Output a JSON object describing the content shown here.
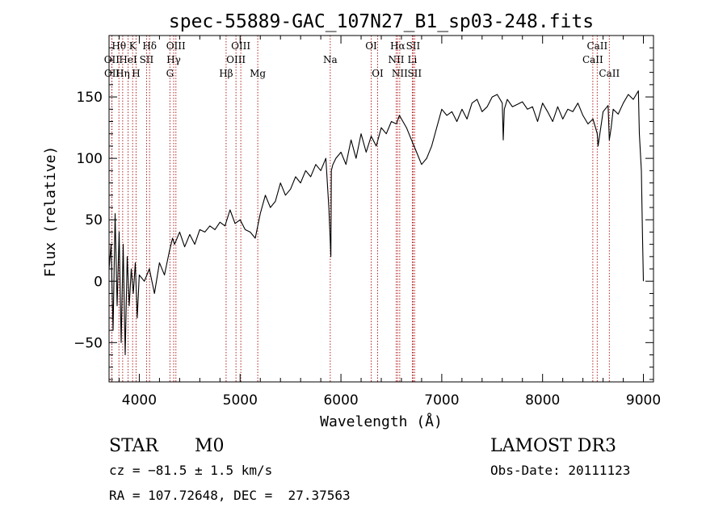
{
  "chart_data": {
    "type": "line",
    "title": "spec-55889-GAC_107N27_B1_sp03-248.fits",
    "xlabel": "Wavelength (Å)",
    "ylabel": "Flux (relative)",
    "xlim": [
      3700,
      9100
    ],
    "ylim": [
      -82,
      200
    ],
    "xticks": [
      4000,
      5000,
      6000,
      7000,
      8000,
      9000
    ],
    "yticks": [
      -50,
      0,
      50,
      100,
      150
    ],
    "grid": false,
    "series": [
      {
        "name": "flux",
        "x": [
          3700,
          3720,
          3740,
          3760,
          3780,
          3800,
          3820,
          3840,
          3860,
          3880,
          3900,
          3920,
          3940,
          3960,
          3980,
          4000,
          4050,
          4100,
          4150,
          4200,
          4250,
          4300,
          4330,
          4350,
          4400,
          4450,
          4500,
          4550,
          4600,
          4650,
          4700,
          4750,
          4800,
          4850,
          4900,
          4950,
          5000,
          5050,
          5100,
          5150,
          5200,
          5250,
          5300,
          5350,
          5400,
          5450,
          5500,
          5550,
          5600,
          5650,
          5700,
          5750,
          5800,
          5850,
          5880,
          5895,
          5900,
          5905,
          5920,
          5950,
          6000,
          6050,
          6100,
          6150,
          6200,
          6250,
          6300,
          6350,
          6400,
          6450,
          6500,
          6550,
          6580,
          6600,
          6650,
          6700,
          6750,
          6800,
          6850,
          6900,
          6950,
          7000,
          7050,
          7100,
          7150,
          7200,
          7250,
          7300,
          7350,
          7400,
          7450,
          7500,
          7550,
          7600,
          7610,
          7620,
          7650,
          7700,
          7750,
          7800,
          7850,
          7900,
          7950,
          8000,
          8050,
          8100,
          8150,
          8200,
          8250,
          8300,
          8350,
          8400,
          8450,
          8500,
          8542,
          8550,
          8600,
          8650,
          8662,
          8680,
          8700,
          8750,
          8800,
          8850,
          8900,
          8950,
          8960,
          8980,
          8990,
          9000
        ],
        "y": [
          10,
          30,
          -40,
          55,
          -20,
          40,
          -50,
          30,
          -60,
          20,
          -20,
          10,
          -10,
          15,
          -30,
          5,
          0,
          10,
          -10,
          15,
          5,
          25,
          35,
          30,
          40,
          28,
          38,
          30,
          42,
          40,
          45,
          42,
          48,
          45,
          58,
          47,
          50,
          42,
          40,
          35,
          55,
          70,
          60,
          65,
          80,
          70,
          75,
          85,
          80,
          90,
          85,
          95,
          90,
          100,
          60,
          30,
          20,
          90,
          95,
          100,
          105,
          95,
          115,
          100,
          120,
          105,
          118,
          110,
          125,
          120,
          130,
          128,
          135,
          132,
          125,
          115,
          105,
          95,
          100,
          110,
          125,
          140,
          135,
          138,
          130,
          140,
          132,
          145,
          148,
          138,
          142,
          150,
          152,
          145,
          115,
          140,
          148,
          142,
          144,
          146,
          140,
          142,
          130,
          145,
          138,
          130,
          142,
          132,
          140,
          138,
          145,
          135,
          128,
          132,
          120,
          110,
          138,
          143,
          115,
          125,
          140,
          136,
          145,
          152,
          148,
          155,
          120,
          90,
          40,
          0
        ]
      }
    ],
    "lines": [
      {
        "name": "OII",
        "x": 3727,
        "row": 1
      },
      {
        "name": "OII",
        "x": 3729,
        "row": 2
      },
      {
        "name": "Hθ",
        "x": 3798,
        "row": 0
      },
      {
        "name": "Hη",
        "x": 3835,
        "row": 2
      },
      {
        "name": "HeI",
        "x": 3889,
        "row": 1
      },
      {
        "name": "K",
        "x": 3934,
        "row": 0
      },
      {
        "name": "H",
        "x": 3968,
        "row": 2
      },
      {
        "name": "SII",
        "x": 4072,
        "row": 1
      },
      {
        "name": "Hδ",
        "x": 4102,
        "row": 0
      },
      {
        "name": "G",
        "x": 4304,
        "row": 2
      },
      {
        "name": "Hγ",
        "x": 4341,
        "row": 1
      },
      {
        "name": "OIII",
        "x": 4363,
        "row": 0
      },
      {
        "name": "Hβ",
        "x": 4861,
        "row": 2
      },
      {
        "name": "OIII",
        "x": 4959,
        "row": 1
      },
      {
        "name": "OIII",
        "x": 5007,
        "row": 0
      },
      {
        "name": "Mg",
        "x": 5175,
        "row": 2
      },
      {
        "name": "Na",
        "x": 5894,
        "row": 1
      },
      {
        "name": "OI",
        "x": 6300,
        "row": 0
      },
      {
        "name": "OI",
        "x": 6364,
        "row": 2
      },
      {
        "name": "NII",
        "x": 6548,
        "row": 1
      },
      {
        "name": "Hα",
        "x": 6563,
        "row": 0
      },
      {
        "name": "NII",
        "x": 6583,
        "row": 2
      },
      {
        "name": "Li",
        "x": 6708,
        "row": 1
      },
      {
        "name": "SII",
        "x": 6716,
        "row": 0
      },
      {
        "name": "SII",
        "x": 6731,
        "row": 2
      },
      {
        "name": "CaII",
        "x": 8498,
        "row": 1
      },
      {
        "name": "CaII",
        "x": 8542,
        "row": 0
      },
      {
        "name": "CaII",
        "x": 8662,
        "row": 2
      }
    ]
  },
  "info": {
    "class": "STAR",
    "subclass": "M0",
    "survey": "LAMOST DR3",
    "redshift": "cz = −81.5 ± 1.5 km/s",
    "obs_date": "Obs-Date: 20111123",
    "coords": "RA = 107.72648, DEC =  27.37563"
  }
}
